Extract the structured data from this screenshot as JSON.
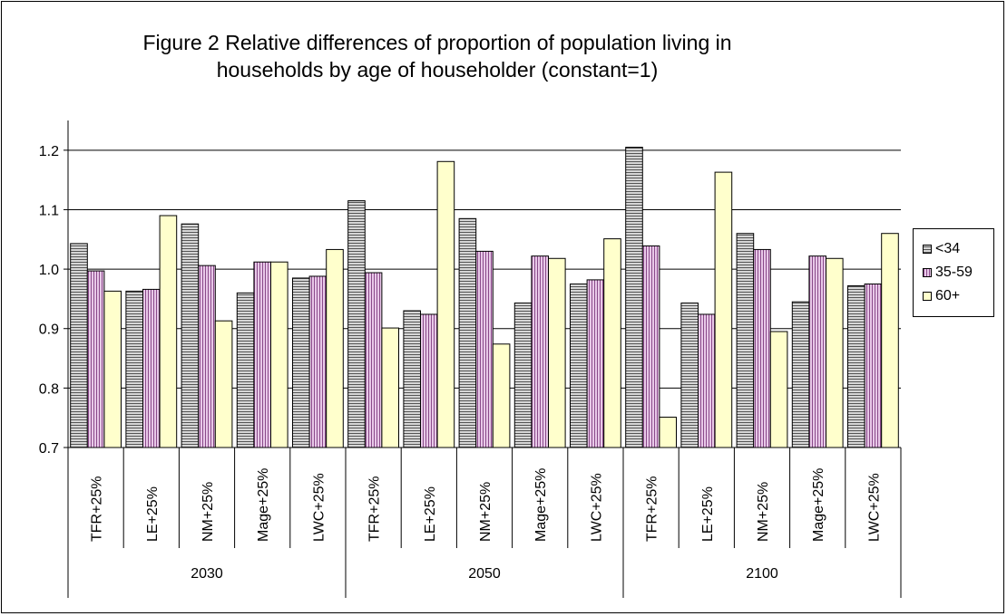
{
  "chart_data": {
    "type": "bar",
    "title": "Figure 2 Relative differences of proportion of population living in households by age of householder (constant=1)",
    "title_lines": [
      "Figure 2 Relative differences of proportion of population living in",
      "households by age of householder (constant=1)"
    ],
    "categories": [
      "TFR+25%",
      "LE+25%",
      "NM+25%",
      "Mage+25%",
      "LWC+25%",
      "TFR+25%",
      "LE+25%",
      "NM+25%",
      "Mage+25%",
      "LWC+25%",
      "TFR+25%",
      "LE+25%",
      "NM+25%",
      "Mage+25%",
      "LWC+25%"
    ],
    "groups": [
      {
        "label": "2030",
        "count": 5
      },
      {
        "label": "2050",
        "count": 5
      },
      {
        "label": "2100",
        "count": 5
      }
    ],
    "series": [
      {
        "name": "<34",
        "color": "#b0b0b0",
        "pattern": "horizontal-lines",
        "values": [
          1.043,
          0.963,
          1.076,
          0.96,
          0.985,
          1.115,
          0.93,
          1.085,
          0.943,
          0.975,
          1.205,
          0.943,
          1.06,
          0.945,
          0.972
        ]
      },
      {
        "name": "35-59",
        "color": "#cc99cc",
        "pattern": "vertical-lines",
        "values": [
          0.997,
          0.966,
          1.006,
          1.012,
          0.988,
          0.994,
          0.924,
          1.03,
          1.022,
          0.982,
          1.039,
          0.924,
          1.033,
          1.022,
          0.975
        ]
      },
      {
        "name": "60+",
        "color": "#ffffcc",
        "pattern": "solid",
        "values": [
          0.963,
          1.09,
          0.913,
          1.012,
          1.033,
          0.901,
          1.181,
          0.874,
          1.018,
          1.051,
          0.751,
          1.163,
          0.895,
          1.018,
          1.06
        ]
      }
    ],
    "ylim": [
      0.7,
      1.25
    ],
    "yticks": [
      "0.7",
      "0.8",
      "0.9",
      "1.0",
      "1.1",
      "1.2"
    ],
    "ytick_values": [
      0.7,
      0.8,
      0.9,
      1.0,
      1.1,
      1.2
    ],
    "grid": true,
    "legend_position": "right",
    "xlabel": "",
    "ylabel": ""
  }
}
